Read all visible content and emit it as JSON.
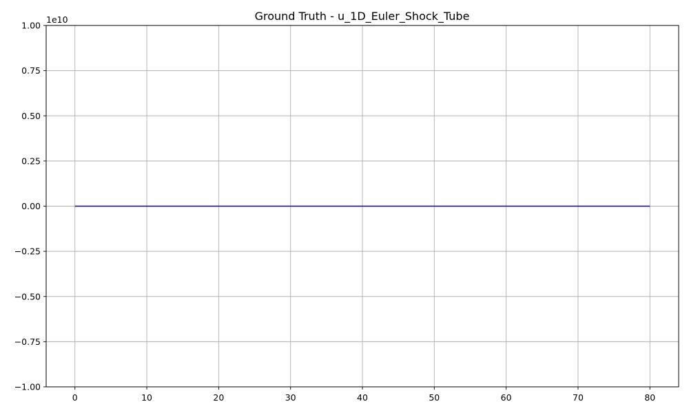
{
  "chart_data": {
    "type": "line",
    "title": "Ground Truth - u_1D_Euler_Shock_Tube",
    "xlabel": "",
    "ylabel": "",
    "xlim": [
      -4,
      84
    ],
    "ylim": [
      -10000000000,
      10000000000
    ],
    "y_offset_label": "1e10",
    "x_ticks": [
      0,
      10,
      20,
      30,
      40,
      50,
      60,
      70,
      80
    ],
    "x_tick_labels": [
      "0",
      "10",
      "20",
      "30",
      "40",
      "50",
      "60",
      "70",
      "80"
    ],
    "y_ticks": [
      -10000000000,
      -7500000000,
      -5000000000,
      -2500000000,
      0,
      2500000000,
      5000000000,
      7500000000,
      10000000000
    ],
    "y_tick_labels": [
      "−1.00",
      "−0.75",
      "−0.50",
      "−0.25",
      "0.00",
      "0.25",
      "0.50",
      "0.75",
      "1.00"
    ],
    "grid": true,
    "legend": "none",
    "series": [
      {
        "color": "#0000cc",
        "x": [
          0,
          10,
          20,
          30,
          40,
          50,
          60,
          70,
          80
        ],
        "y": [
          0,
          0,
          0,
          0,
          0,
          0,
          0,
          0,
          0
        ]
      }
    ]
  },
  "colors": {
    "grid": "#b0b0b0",
    "axes": "#000000",
    "background": "#ffffff"
  }
}
